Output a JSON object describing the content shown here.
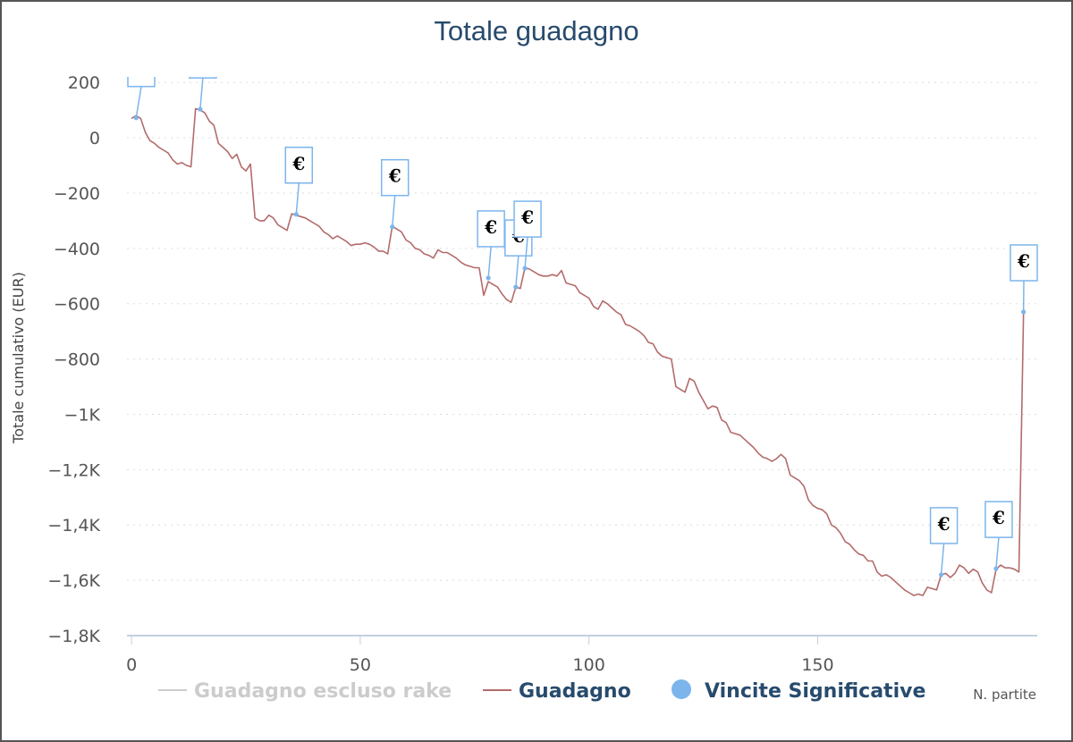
{
  "chart_data": {
    "type": "line",
    "title": "Totale guadagno",
    "xlabel": "N. partite",
    "ylabel": "Totale cumulativo (EUR)",
    "xlim": [
      -1,
      198
    ],
    "ylim": [
      -1800,
      220
    ],
    "x_ticks": [
      {
        "value": 0,
        "label": "0"
      },
      {
        "value": 50,
        "label": "50"
      },
      {
        "value": 100,
        "label": "100"
      },
      {
        "value": 150,
        "label": "150"
      }
    ],
    "y_ticks": [
      {
        "value": 200,
        "label": "200"
      },
      {
        "value": 0,
        "label": "0"
      },
      {
        "value": -200,
        "label": "−200"
      },
      {
        "value": -400,
        "label": "−400"
      },
      {
        "value": -600,
        "label": "−600"
      },
      {
        "value": -800,
        "label": "−800"
      },
      {
        "value": -1000,
        "label": "−1K"
      },
      {
        "value": -1200,
        "label": "−1,2K"
      },
      {
        "value": -1400,
        "label": "−1,4K"
      },
      {
        "value": -1600,
        "label": "−1,6K"
      },
      {
        "value": -1800,
        "label": "−1,8K"
      }
    ],
    "grid": "horizontal-dotted",
    "legend_position": "bottom",
    "series": [
      {
        "name": "Guadagno escluso rake",
        "color": "#cccccc",
        "hidden": true,
        "points": []
      },
      {
        "name": "Guadagno",
        "color": "#b46b6b",
        "points": [
          [
            0,
            70
          ],
          [
            1,
            80
          ],
          [
            2,
            70
          ],
          [
            3,
            20
          ],
          [
            4,
            -10
          ],
          [
            5,
            -20
          ],
          [
            6,
            -35
          ],
          [
            7,
            -45
          ],
          [
            8,
            -55
          ],
          [
            9,
            -80
          ],
          [
            10,
            -95
          ],
          [
            11,
            -90
          ],
          [
            12,
            -100
          ],
          [
            13,
            -105
          ],
          [
            14,
            105
          ],
          [
            15,
            100
          ],
          [
            16,
            90
          ],
          [
            17,
            60
          ],
          [
            18,
            45
          ],
          [
            19,
            -20
          ],
          [
            20,
            -35
          ],
          [
            21,
            -50
          ],
          [
            22,
            -75
          ],
          [
            23,
            -60
          ],
          [
            24,
            -105
          ],
          [
            25,
            -120
          ],
          [
            26,
            -95
          ],
          [
            27,
            -290
          ],
          [
            28,
            -300
          ],
          [
            29,
            -300
          ],
          [
            30,
            -280
          ],
          [
            31,
            -290
          ],
          [
            32,
            -315
          ],
          [
            33,
            -325
          ],
          [
            34,
            -335
          ],
          [
            35,
            -275
          ],
          [
            36,
            -280
          ],
          [
            37,
            -285
          ],
          [
            38,
            -290
          ],
          [
            39,
            -300
          ],
          [
            40,
            -310
          ],
          [
            41,
            -320
          ],
          [
            42,
            -340
          ],
          [
            43,
            -350
          ],
          [
            44,
            -365
          ],
          [
            45,
            -355
          ],
          [
            46,
            -365
          ],
          [
            47,
            -375
          ],
          [
            48,
            -390
          ],
          [
            49,
            -385
          ],
          [
            50,
            -385
          ],
          [
            51,
            -380
          ],
          [
            52,
            -385
          ],
          [
            53,
            -395
          ],
          [
            54,
            -410
          ],
          [
            55,
            -410
          ],
          [
            56,
            -420
          ],
          [
            57,
            -320
          ],
          [
            58,
            -330
          ],
          [
            59,
            -340
          ],
          [
            60,
            -370
          ],
          [
            61,
            -380
          ],
          [
            62,
            -400
          ],
          [
            63,
            -405
          ],
          [
            64,
            -420
          ],
          [
            65,
            -425
          ],
          [
            66,
            -435
          ],
          [
            67,
            -405
          ],
          [
            68,
            -415
          ],
          [
            69,
            -415
          ],
          [
            70,
            -425
          ],
          [
            71,
            -435
          ],
          [
            72,
            -450
          ],
          [
            73,
            -460
          ],
          [
            74,
            -465
          ],
          [
            75,
            -470
          ],
          [
            76,
            -470
          ],
          [
            77,
            -570
          ],
          [
            78,
            -520
          ],
          [
            79,
            -530
          ],
          [
            80,
            -540
          ],
          [
            81,
            -565
          ],
          [
            82,
            -585
          ],
          [
            83,
            -595
          ],
          [
            84,
            -540
          ],
          [
            85,
            -545
          ],
          [
            86,
            -470
          ],
          [
            87,
            -475
          ],
          [
            88,
            -485
          ],
          [
            89,
            -495
          ],
          [
            90,
            -500
          ],
          [
            91,
            -500
          ],
          [
            92,
            -495
          ],
          [
            93,
            -500
          ],
          [
            94,
            -480
          ],
          [
            95,
            -525
          ],
          [
            96,
            -530
          ],
          [
            97,
            -535
          ],
          [
            98,
            -560
          ],
          [
            99,
            -570
          ],
          [
            100,
            -580
          ],
          [
            101,
            -610
          ],
          [
            102,
            -620
          ],
          [
            103,
            -590
          ],
          [
            104,
            -600
          ],
          [
            105,
            -615
          ],
          [
            106,
            -630
          ],
          [
            107,
            -640
          ],
          [
            108,
            -675
          ],
          [
            109,
            -680
          ],
          [
            110,
            -690
          ],
          [
            111,
            -700
          ],
          [
            112,
            -715
          ],
          [
            113,
            -740
          ],
          [
            114,
            -745
          ],
          [
            115,
            -775
          ],
          [
            116,
            -790
          ],
          [
            117,
            -795
          ],
          [
            118,
            -800
          ],
          [
            119,
            -900
          ],
          [
            120,
            -910
          ],
          [
            121,
            -920
          ],
          [
            122,
            -870
          ],
          [
            123,
            -880
          ],
          [
            124,
            -920
          ],
          [
            125,
            -950
          ],
          [
            126,
            -980
          ],
          [
            127,
            -970
          ],
          [
            128,
            -975
          ],
          [
            129,
            -1020
          ],
          [
            130,
            -1030
          ],
          [
            131,
            -1065
          ],
          [
            132,
            -1070
          ],
          [
            133,
            -1075
          ],
          [
            134,
            -1090
          ],
          [
            135,
            -1105
          ],
          [
            136,
            -1120
          ],
          [
            137,
            -1140
          ],
          [
            138,
            -1155
          ],
          [
            139,
            -1160
          ],
          [
            140,
            -1170
          ],
          [
            141,
            -1160
          ],
          [
            142,
            -1145
          ],
          [
            143,
            -1160
          ],
          [
            144,
            -1220
          ],
          [
            145,
            -1230
          ],
          [
            146,
            -1240
          ],
          [
            147,
            -1260
          ],
          [
            148,
            -1310
          ],
          [
            149,
            -1330
          ],
          [
            150,
            -1340
          ],
          [
            151,
            -1345
          ],
          [
            152,
            -1360
          ],
          [
            153,
            -1400
          ],
          [
            154,
            -1410
          ],
          [
            155,
            -1430
          ],
          [
            156,
            -1460
          ],
          [
            157,
            -1470
          ],
          [
            158,
            -1490
          ],
          [
            159,
            -1505
          ],
          [
            160,
            -1510
          ],
          [
            161,
            -1530
          ],
          [
            162,
            -1530
          ],
          [
            163,
            -1570
          ],
          [
            164,
            -1585
          ],
          [
            165,
            -1580
          ],
          [
            166,
            -1590
          ],
          [
            167,
            -1605
          ],
          [
            168,
            -1620
          ],
          [
            169,
            -1635
          ],
          [
            170,
            -1645
          ],
          [
            171,
            -1655
          ],
          [
            172,
            -1650
          ],
          [
            173,
            -1655
          ],
          [
            174,
            -1625
          ],
          [
            175,
            -1630
          ],
          [
            176,
            -1635
          ],
          [
            177,
            -1580
          ],
          [
            178,
            -1575
          ],
          [
            179,
            -1590
          ],
          [
            180,
            -1575
          ],
          [
            181,
            -1545
          ],
          [
            182,
            -1555
          ],
          [
            183,
            -1575
          ],
          [
            184,
            -1560
          ],
          [
            185,
            -1570
          ],
          [
            186,
            -1610
          ],
          [
            187,
            -1635
          ],
          [
            188,
            -1645
          ],
          [
            189,
            -1560
          ],
          [
            190,
            -1545
          ],
          [
            191,
            -1555
          ],
          [
            192,
            -1555
          ],
          [
            193,
            -1560
          ],
          [
            194,
            -1570
          ],
          [
            195,
            -630
          ]
        ]
      },
      {
        "name": "Vincite Significative",
        "color": "#7cb5ec",
        "marker_label": "€",
        "points": [
          [
            1,
            72
          ],
          [
            15,
            103
          ],
          [
            36,
            -277
          ],
          [
            57,
            -322
          ],
          [
            78,
            -507
          ],
          [
            84,
            -540
          ],
          [
            86,
            -472
          ],
          [
            177,
            -1580
          ],
          [
            189,
            -1558
          ],
          [
            195,
            -630
          ]
        ]
      }
    ]
  }
}
